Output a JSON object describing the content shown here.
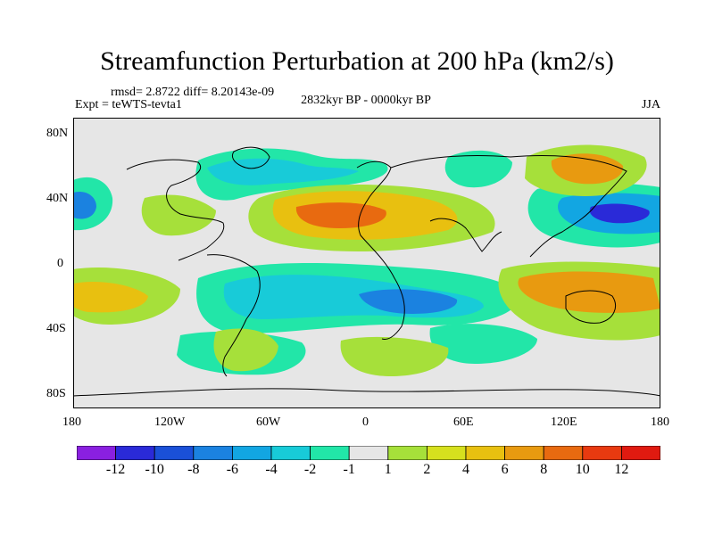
{
  "title": "Streamfunction Perturbation at 200 hPa (km2/s)",
  "stats": "rmsd= 2.8722 diff= 8.20143e-09",
  "experiment": "Expt = teWTS-tevta1",
  "period": "2832kyr BP - 0000kyr BP",
  "season": "JJA",
  "lat_ticks": [
    "80N",
    "40N",
    "0",
    "40S",
    "80S"
  ],
  "lon_ticks": [
    "180",
    "120W",
    "60W",
    "0",
    "60E",
    "120E",
    "180"
  ],
  "colorbar": {
    "labels": [
      "-12",
      "-10",
      "-8",
      "-6",
      "-4",
      "-2",
      "-1",
      "1",
      "2",
      "4",
      "6",
      "8",
      "10",
      "12"
    ],
    "colors": [
      "#8a20e0",
      "#2a2ad8",
      "#1a50d8",
      "#1b82e0",
      "#12a6e2",
      "#18cbd8",
      "#22e6a8",
      "#e6e6e6",
      "#a6e03a",
      "#d6e01e",
      "#e8c010",
      "#e89a10",
      "#e86a10",
      "#e83a10",
      "#e01a10"
    ]
  }
}
